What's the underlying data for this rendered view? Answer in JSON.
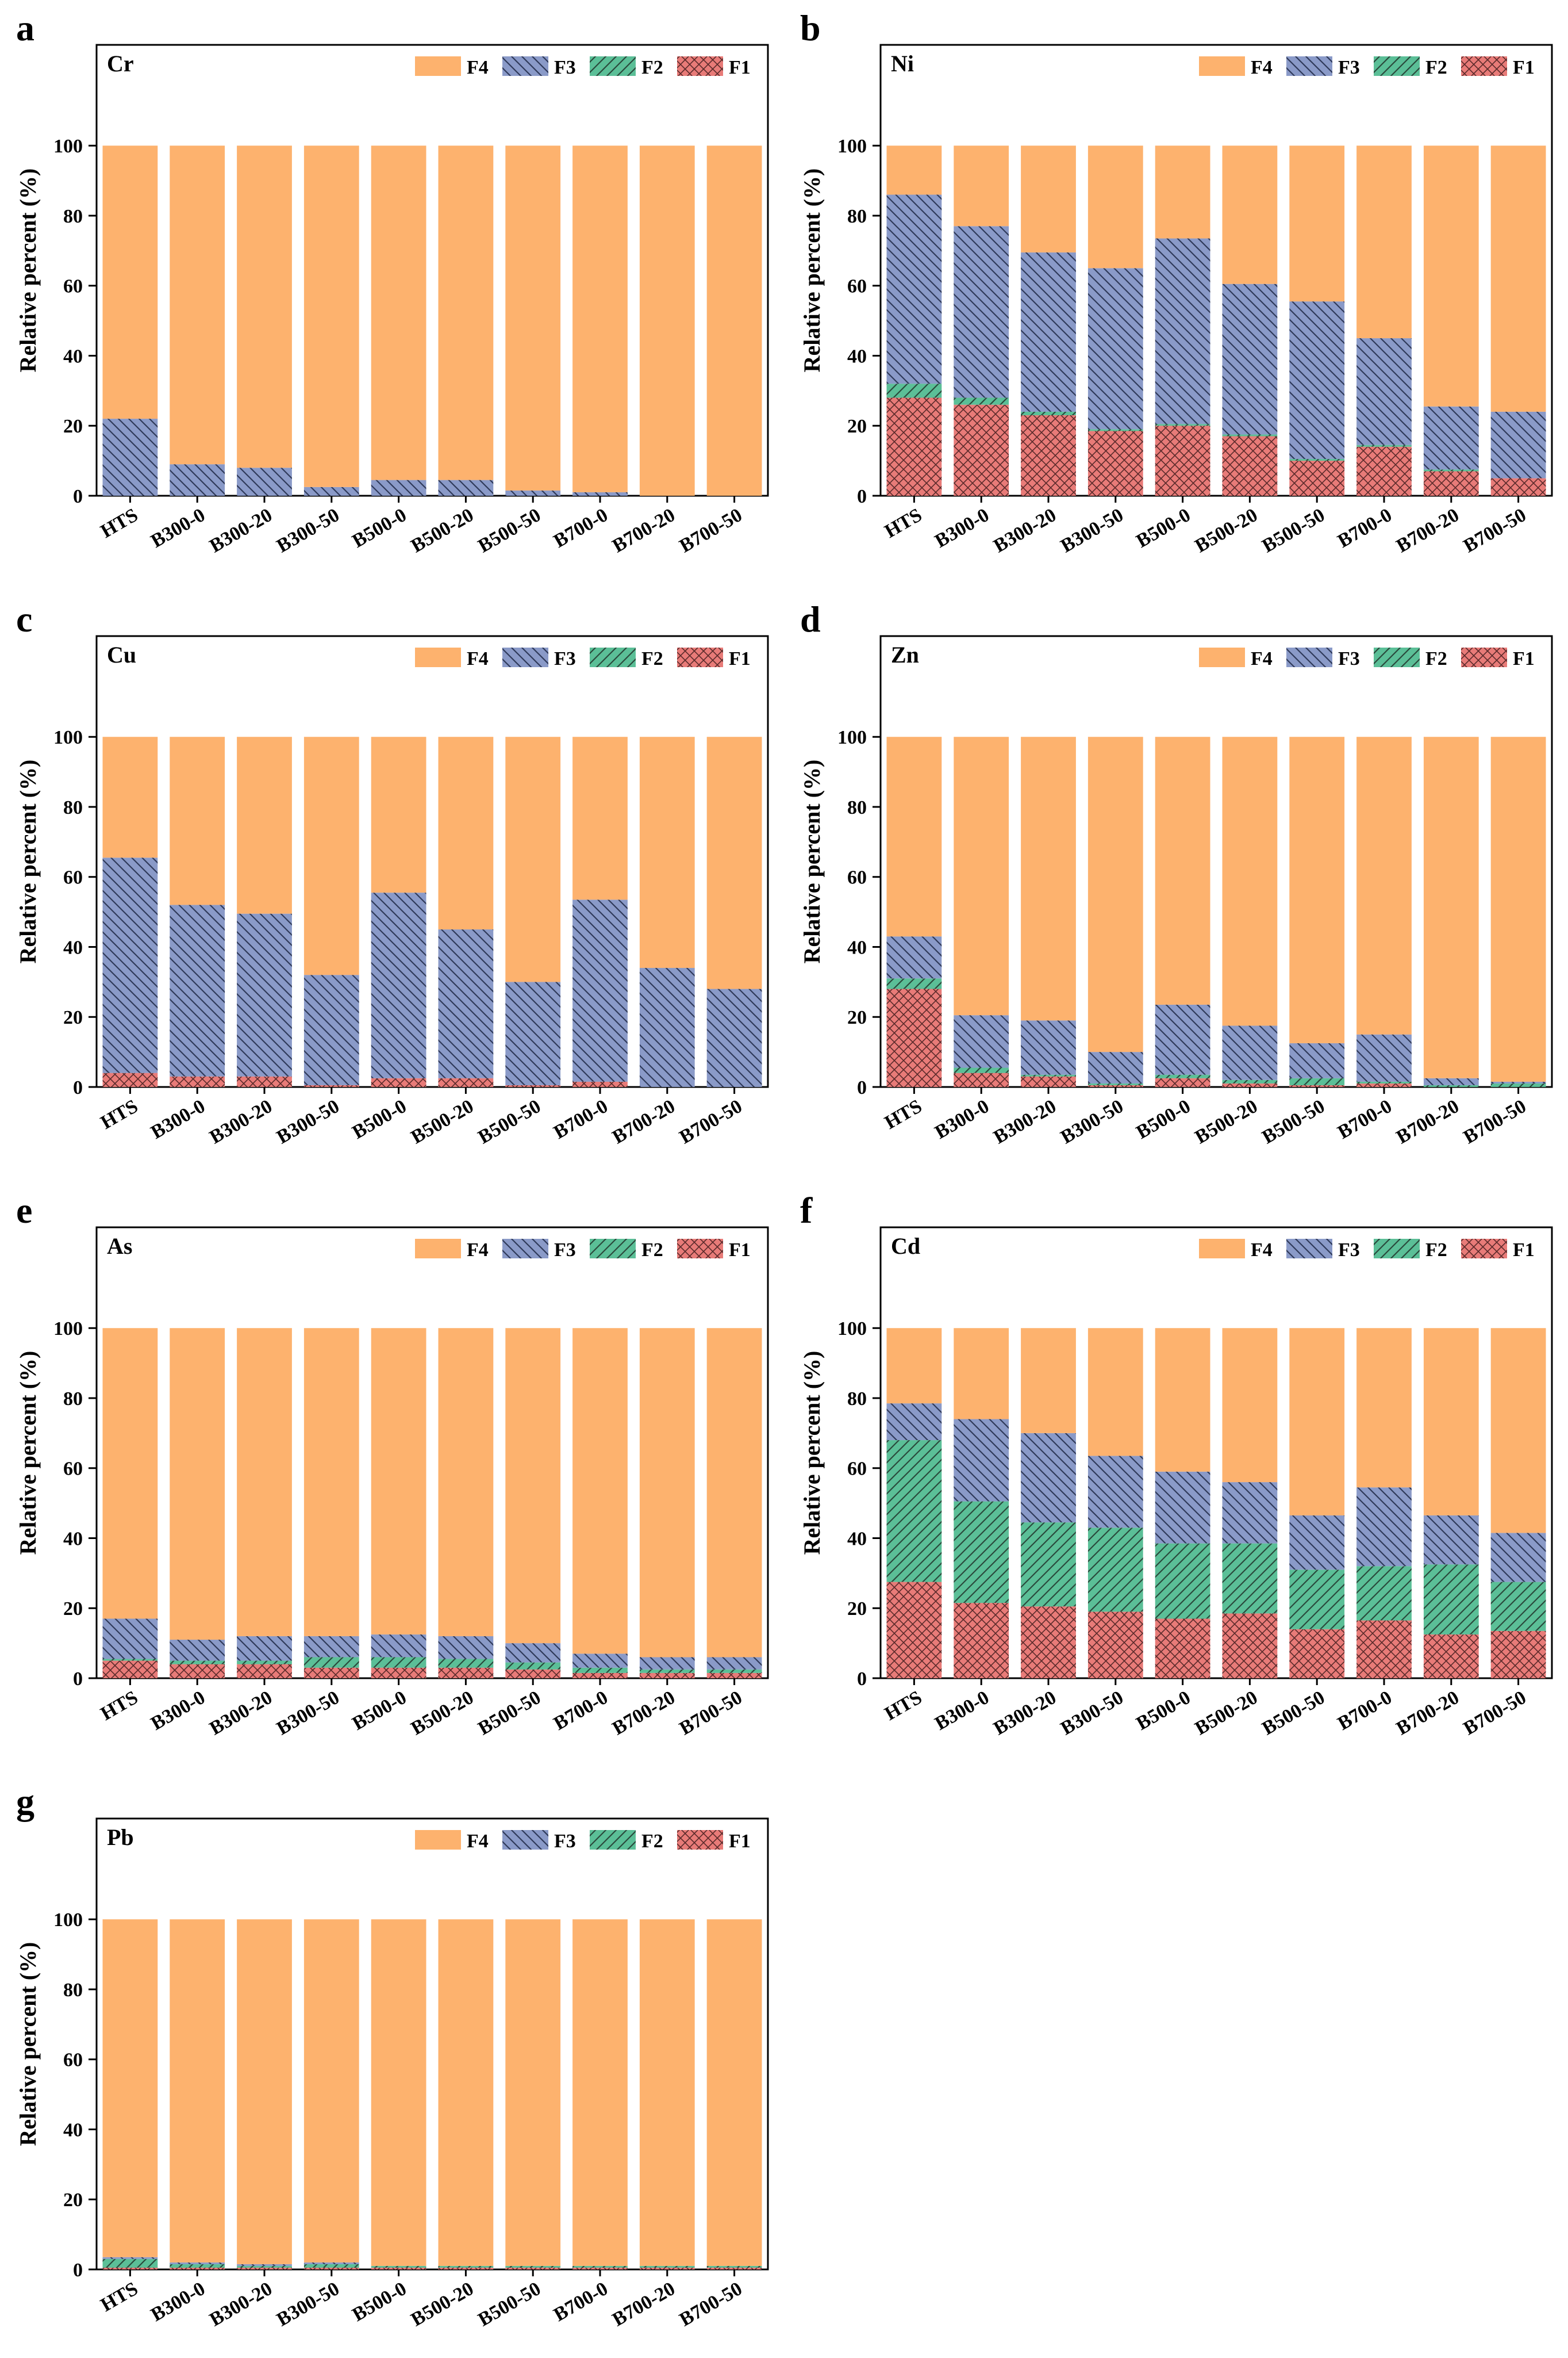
{
  "figure": {
    "colors": {
      "F4": "#FDB26E",
      "F3": "#8A9AC8",
      "F2": "#5BBF97",
      "F1": "#E87B78",
      "hatch": "#2f3a5a",
      "axis": "#000000"
    },
    "legend_order": [
      "F4",
      "F3",
      "F2",
      "F1"
    ],
    "ylabel": "Relative percent (%)",
    "y_ticks": [
      0,
      20,
      40,
      60,
      80,
      100
    ],
    "categories": [
      "HTS",
      "B300-0",
      "B300-20",
      "B300-50",
      "B500-0",
      "B500-20",
      "B500-50",
      "B700-0",
      "B700-20",
      "B700-50"
    ]
  },
  "chart_data": [
    {
      "type": "bar",
      "stacked": true,
      "panel": "a",
      "title": "Cr",
      "ylabel": "Relative percent (%)",
      "ylim": [
        0,
        100
      ],
      "legend": "top-right",
      "categories": [
        "HTS",
        "B300-0",
        "B300-20",
        "B300-50",
        "B500-0",
        "B500-20",
        "B500-50",
        "B700-0",
        "B700-20",
        "B700-50"
      ],
      "series": [
        {
          "name": "F1",
          "values": [
            0,
            0,
            0,
            0,
            0,
            0,
            0,
            0,
            0,
            0
          ]
        },
        {
          "name": "F2",
          "values": [
            0,
            0,
            0,
            0,
            0,
            0,
            0,
            0,
            0,
            0
          ]
        },
        {
          "name": "F3",
          "values": [
            22,
            9,
            8,
            2.5,
            4.5,
            4.5,
            1.5,
            1,
            0,
            0
          ]
        },
        {
          "name": "F4",
          "values": [
            78,
            91,
            92,
            97.5,
            95.5,
            95.5,
            98.5,
            99,
            100,
            100
          ]
        }
      ]
    },
    {
      "type": "bar",
      "stacked": true,
      "panel": "b",
      "title": "Ni",
      "ylabel": "Relative percent (%)",
      "ylim": [
        0,
        100
      ],
      "legend": "top-right",
      "categories": [
        "HTS",
        "B300-0",
        "B300-20",
        "B300-50",
        "B500-0",
        "B500-20",
        "B500-50",
        "B700-0",
        "B700-20",
        "B700-50"
      ],
      "series": [
        {
          "name": "F1",
          "values": [
            28,
            26,
            23,
            18.5,
            20,
            17,
            10,
            14,
            7,
            5
          ]
        },
        {
          "name": "F2",
          "values": [
            4,
            2,
            1,
            0.5,
            0.5,
            0.5,
            0.5,
            0.5,
            0.5,
            0
          ]
        },
        {
          "name": "F3",
          "values": [
            54,
            49,
            45.5,
            46,
            53,
            43,
            45,
            30.5,
            18,
            19
          ]
        },
        {
          "name": "F4",
          "values": [
            14,
            23,
            30.5,
            35,
            26.5,
            39.5,
            44.5,
            55,
            74.5,
            76
          ]
        }
      ]
    },
    {
      "type": "bar",
      "stacked": true,
      "panel": "c",
      "title": "Cu",
      "ylabel": "Relative percent (%)",
      "ylim": [
        0,
        100
      ],
      "legend": "top-right",
      "categories": [
        "HTS",
        "B300-0",
        "B300-20",
        "B300-50",
        "B500-0",
        "B500-20",
        "B500-50",
        "B700-0",
        "B700-20",
        "B700-50"
      ],
      "series": [
        {
          "name": "F1",
          "values": [
            4,
            3,
            3,
            0.5,
            2.5,
            2.5,
            0.5,
            1.5,
            0,
            0
          ]
        },
        {
          "name": "F2",
          "values": [
            0,
            0,
            0,
            0,
            0,
            0,
            0,
            0,
            0,
            0
          ]
        },
        {
          "name": "F3",
          "values": [
            61.5,
            49,
            46.5,
            31.5,
            53,
            42.5,
            29.5,
            52,
            34,
            28
          ]
        },
        {
          "name": "F4",
          "values": [
            34.5,
            48,
            50.5,
            68,
            44.5,
            55,
            70,
            46.5,
            66,
            72
          ]
        }
      ]
    },
    {
      "type": "bar",
      "stacked": true,
      "panel": "d",
      "title": "Zn",
      "ylabel": "Relative percent (%)",
      "ylim": [
        0,
        100
      ],
      "legend": "top-right",
      "categories": [
        "HTS",
        "B300-0",
        "B300-20",
        "B300-50",
        "B500-0",
        "B500-20",
        "B500-50",
        "B700-0",
        "B700-20",
        "B700-50"
      ],
      "series": [
        {
          "name": "F1",
          "values": [
            28,
            4,
            3,
            0.5,
            2.5,
            1,
            0.5,
            1,
            0,
            0
          ]
        },
        {
          "name": "F2",
          "values": [
            3,
            1.5,
            0.5,
            0.5,
            1,
            1,
            2,
            0.5,
            0.5,
            1
          ]
        },
        {
          "name": "F3",
          "values": [
            12,
            15,
            15.5,
            9,
            20,
            15.5,
            10,
            13.5,
            2,
            0.5
          ]
        },
        {
          "name": "F4",
          "values": [
            57,
            79.5,
            81,
            90,
            76.5,
            82.5,
            87.5,
            85,
            97.5,
            98.5
          ]
        }
      ]
    },
    {
      "type": "bar",
      "stacked": true,
      "panel": "e",
      "title": "As",
      "ylabel": "Relative percent (%)",
      "ylim": [
        0,
        100
      ],
      "legend": "top-right",
      "categories": [
        "HTS",
        "B300-0",
        "B300-20",
        "B300-50",
        "B500-0",
        "B500-20",
        "B500-50",
        "B700-0",
        "B700-20",
        "B700-50"
      ],
      "series": [
        {
          "name": "F1",
          "values": [
            5,
            4,
            4,
            3,
            3,
            3,
            2.5,
            1.5,
            1.5,
            1.5
          ]
        },
        {
          "name": "F2",
          "values": [
            0.5,
            1,
            1,
            3,
            3,
            2.5,
            2,
            1.5,
            1,
            1
          ]
        },
        {
          "name": "F3",
          "values": [
            11.5,
            6,
            7,
            6,
            6.5,
            6.5,
            5.5,
            4,
            3.5,
            3.5
          ]
        },
        {
          "name": "F4",
          "values": [
            83,
            89,
            88,
            88,
            87.5,
            88,
            90,
            93,
            94,
            94
          ]
        }
      ]
    },
    {
      "type": "bar",
      "stacked": true,
      "panel": "f",
      "title": "Cd",
      "ylabel": "Relative percent (%)",
      "ylim": [
        0,
        100
      ],
      "legend": "top-right",
      "categories": [
        "HTS",
        "B300-0",
        "B300-20",
        "B300-50",
        "B500-0",
        "B500-20",
        "B500-50",
        "B700-0",
        "B700-20",
        "B700-50"
      ],
      "series": [
        {
          "name": "F1",
          "values": [
            27.5,
            21.5,
            20.5,
            19,
            17,
            18.5,
            14,
            16.5,
            12.5,
            13.5
          ]
        },
        {
          "name": "F2",
          "values": [
            40.5,
            29,
            24,
            24,
            21.5,
            20,
            17,
            15.5,
            20,
            14
          ]
        },
        {
          "name": "F3",
          "values": [
            10.5,
            23.5,
            25.5,
            20.5,
            20.5,
            17.5,
            15.5,
            22.5,
            14,
            14
          ]
        },
        {
          "name": "F4",
          "values": [
            21.5,
            26,
            30,
            36.5,
            41,
            44,
            53.5,
            45.5,
            53.5,
            58.5
          ]
        }
      ]
    },
    {
      "type": "bar",
      "stacked": true,
      "panel": "g",
      "title": "Pb",
      "ylabel": "Relative percent (%)",
      "ylim": [
        0,
        100
      ],
      "legend": "top-right",
      "categories": [
        "HTS",
        "B300-0",
        "B300-20",
        "B300-50",
        "B500-0",
        "B500-20",
        "B500-50",
        "B700-0",
        "B700-20",
        "B700-50"
      ],
      "series": [
        {
          "name": "F1",
          "values": [
            0.5,
            0.5,
            0.5,
            0.5,
            0.5,
            0.5,
            0.5,
            0.5,
            0.5,
            0.5
          ]
        },
        {
          "name": "F2",
          "values": [
            2.5,
            1,
            0.5,
            1,
            0.5,
            0.5,
            0.5,
            0.5,
            0.5,
            0.5
          ]
        },
        {
          "name": "F3",
          "values": [
            0.5,
            0.5,
            0.5,
            0.5,
            0,
            0,
            0,
            0,
            0,
            0
          ]
        },
        {
          "name": "F4",
          "values": [
            96.5,
            98,
            98.5,
            98,
            99,
            99,
            99,
            99,
            99,
            99
          ]
        }
      ]
    }
  ]
}
